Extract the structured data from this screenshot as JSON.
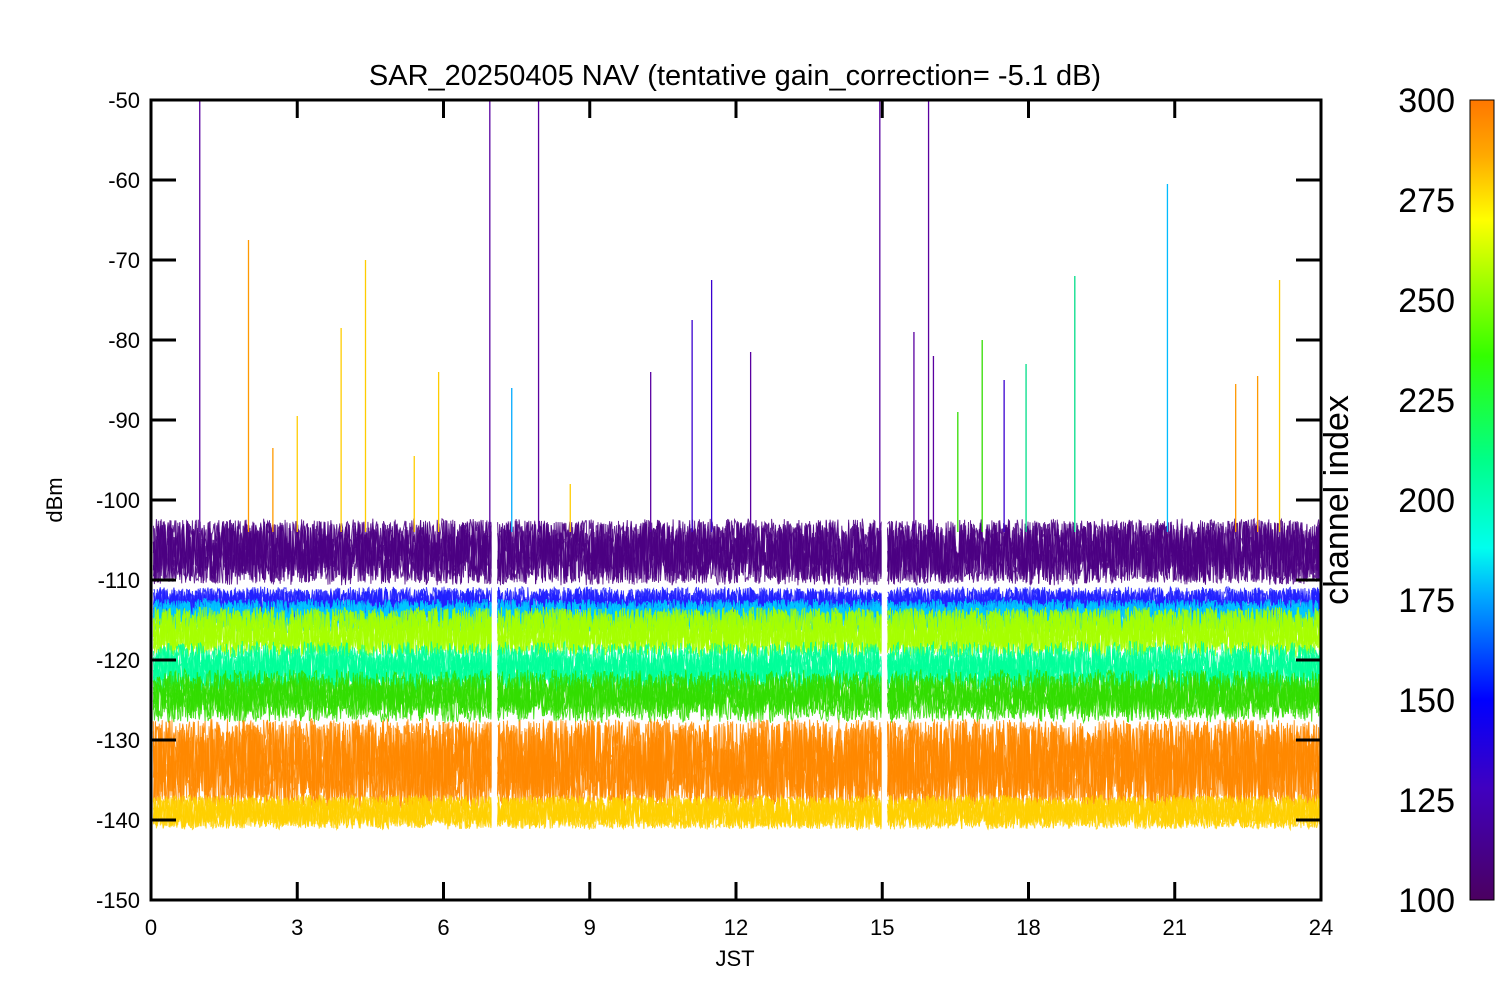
{
  "chart_data": {
    "type": "line",
    "title": "SAR_20250405 NAV (tentative gain_correction= -5.1 dB)",
    "xlabel": "JST",
    "ylabel": "dBm",
    "xlim": [
      0,
      24
    ],
    "ylim": [
      -150,
      -50
    ],
    "x_ticks": [
      0,
      3,
      6,
      9,
      12,
      15,
      18,
      21,
      24
    ],
    "y_ticks": [
      -50,
      -60,
      -70,
      -80,
      -90,
      -100,
      -110,
      -120,
      -130,
      -140,
      -150
    ],
    "colorbar": {
      "label": "channel index",
      "range": [
        100,
        300
      ],
      "ticks": [
        100,
        125,
        150,
        175,
        200,
        225,
        250,
        275,
        300
      ],
      "colormap": "rainbow (purple-blue-cyan-green-yellow-orange)"
    },
    "data_gaps_x": [
      7.05,
      15.05
    ],
    "noise_bands": [
      {
        "channel": 110,
        "color": "#4b0082",
        "center_dbm": -106.5,
        "spread_dbm": 4.0
      },
      {
        "channel": 140,
        "color": "#2020ff",
        "center_dbm": -113.0,
        "spread_dbm": 2.0
      },
      {
        "channel": 180,
        "color": "#00c8ff",
        "center_dbm": -114.5,
        "spread_dbm": 2.0
      },
      {
        "channel": 255,
        "color": "#a6ff00",
        "center_dbm": -116.5,
        "spread_dbm": 3.0
      },
      {
        "channel": 195,
        "color": "#00ff99",
        "center_dbm": -121.0,
        "spread_dbm": 2.5
      },
      {
        "channel": 240,
        "color": "#33dd00",
        "center_dbm": -124.5,
        "spread_dbm": 2.5
      },
      {
        "channel": 295,
        "color": "#ff8800",
        "center_dbm": -133.0,
        "spread_dbm": 5.5
      },
      {
        "channel": 275,
        "color": "#ffd000",
        "center_dbm": -139.0,
        "spread_dbm": 2.0
      }
    ],
    "spikes": [
      {
        "x": 1.0,
        "y": -50,
        "color": "#5a00a0"
      },
      {
        "x": 2.0,
        "y": -67.5,
        "color": "#ff9900"
      },
      {
        "x": 2.5,
        "y": -93.5,
        "color": "#ff9900"
      },
      {
        "x": 3.0,
        "y": -89.5,
        "color": "#ffcc00"
      },
      {
        "x": 3.9,
        "y": -78.5,
        "color": "#ffcc00"
      },
      {
        "x": 4.4,
        "y": -70.0,
        "color": "#ffcc00"
      },
      {
        "x": 5.4,
        "y": -94.5,
        "color": "#ffcc00"
      },
      {
        "x": 5.9,
        "y": -84.0,
        "color": "#ffcc00"
      },
      {
        "x": 6.95,
        "y": -50,
        "color": "#5a00a0"
      },
      {
        "x": 7.4,
        "y": -86.0,
        "color": "#00aaff"
      },
      {
        "x": 7.95,
        "y": -50,
        "color": "#5a00a0"
      },
      {
        "x": 8.6,
        "y": -98.0,
        "color": "#ffcc00"
      },
      {
        "x": 10.25,
        "y": -84.0,
        "color": "#5a00a0"
      },
      {
        "x": 11.1,
        "y": -77.5,
        "color": "#3a00d0"
      },
      {
        "x": 11.5,
        "y": -72.5,
        "color": "#3a00d0"
      },
      {
        "x": 12.3,
        "y": -81.5,
        "color": "#5a00a0"
      },
      {
        "x": 14.95,
        "y": -50,
        "color": "#5a00a0"
      },
      {
        "x": 15.65,
        "y": -79.0,
        "color": "#5a00a0"
      },
      {
        "x": 15.95,
        "y": -50,
        "color": "#5a00a0"
      },
      {
        "x": 16.05,
        "y": -82.0,
        "color": "#5a00a0"
      },
      {
        "x": 16.55,
        "y": -89.0,
        "color": "#33dd00"
      },
      {
        "x": 17.05,
        "y": -80.0,
        "color": "#33dd00"
      },
      {
        "x": 17.5,
        "y": -85.0,
        "color": "#3a00d0"
      },
      {
        "x": 17.95,
        "y": -83.0,
        "color": "#00dd88"
      },
      {
        "x": 18.95,
        "y": -72.0,
        "color": "#00dd88"
      },
      {
        "x": 20.85,
        "y": -60.5,
        "color": "#00bbff"
      },
      {
        "x": 22.25,
        "y": -85.5,
        "color": "#ff9900"
      },
      {
        "x": 22.7,
        "y": -84.5,
        "color": "#ff9900"
      },
      {
        "x": 23.15,
        "y": -72.5,
        "color": "#ffcc00"
      }
    ]
  }
}
